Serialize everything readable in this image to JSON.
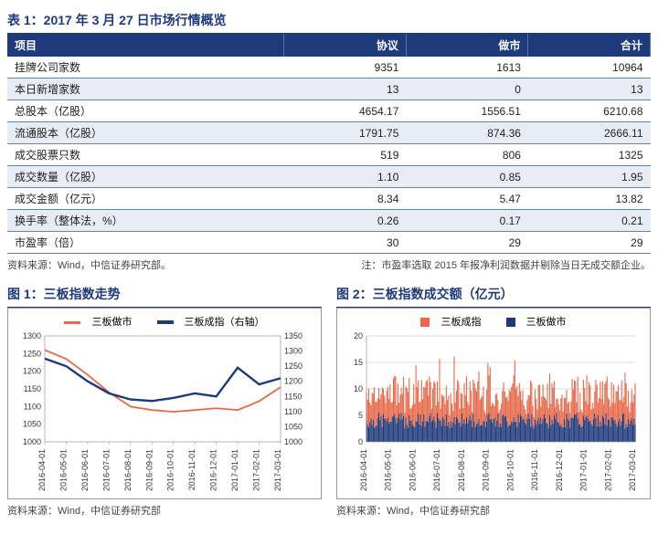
{
  "table": {
    "title": "表 1：2017 年 3 月 27 日市场行情概览",
    "columns": [
      "项目",
      "协议",
      "做市",
      "合计"
    ],
    "rows": [
      [
        "挂牌公司家数",
        "9351",
        "1613",
        "10964"
      ],
      [
        "本日新增家数",
        "13",
        "0",
        "13"
      ],
      [
        "总股本（亿股）",
        "4654.17",
        "1556.51",
        "6210.68"
      ],
      [
        "流通股本（亿股）",
        "1791.75",
        "874.36",
        "2666.11"
      ],
      [
        "成交股票只数",
        "519",
        "806",
        "1325"
      ],
      [
        "成交数量（亿股）",
        "1.10",
        "0.85",
        "1.95"
      ],
      [
        "成交金额（亿元）",
        "8.34",
        "5.47",
        "13.82"
      ],
      [
        "换手率（整体法，%）",
        "0.26",
        "0.17",
        "0.21"
      ],
      [
        "市盈率（倍）",
        "30",
        "29",
        "29"
      ]
    ],
    "source_left": "资料来源：Wind，中信证券研究部。",
    "source_right": "注：市盈率选取 2015 年报净利润数据并剔除当日无成交额企业。"
  },
  "chart1": {
    "title": "图 1：三板指数走势",
    "type": "dual-line",
    "series1": {
      "name": "三板做市",
      "color": "#e8694a"
    },
    "series2": {
      "name": "三板成指（右轴）",
      "color": "#1f3a7a"
    },
    "x_labels": [
      "2016-04-01",
      "2016-05-01",
      "2016-06-01",
      "2016-07-01",
      "2016-08-01",
      "2016-09-01",
      "2016-10-01",
      "2016-11-01",
      "2016-12-01",
      "2017-01-01",
      "2017-02-01",
      "2017-03-01"
    ],
    "y_left": {
      "min": 1000,
      "max": 1300,
      "step": 50
    },
    "y_right": {
      "min": 1000,
      "max": 1350,
      "step": 50
    },
    "s1_values": [
      1260,
      1235,
      1190,
      1140,
      1100,
      1090,
      1085,
      1090,
      1095,
      1090,
      1115,
      1155
    ],
    "s2_values": [
      1275,
      1250,
      1200,
      1160,
      1140,
      1135,
      1145,
      1160,
      1150,
      1245,
      1190,
      1210
    ],
    "source": "资料来源：Wind，中信证券研究部"
  },
  "chart2": {
    "title": "图 2：三板指数成交额（亿元）",
    "type": "stacked-bar",
    "series1": {
      "name": "三板成指",
      "color": "#e8694a"
    },
    "series2": {
      "name": "三板做市",
      "color": "#1f3a7a"
    },
    "x_labels": [
      "2016-04-01",
      "2016-05-01",
      "2016-06-01",
      "2016-07-01",
      "2016-08-01",
      "2016-09-01",
      "2016-10-01",
      "2016-11-01",
      "2016-12-01",
      "2017-01-01",
      "2017-02-01",
      "2017-03-01"
    ],
    "y": {
      "min": 0,
      "max": 20,
      "step": 5
    },
    "source": "资料来源：Wind，中信证券研究部"
  },
  "colors": {
    "header_bg": "#1f3a7a",
    "row_alt": "#e8ecf5",
    "title_color": "#1f3a7a"
  }
}
